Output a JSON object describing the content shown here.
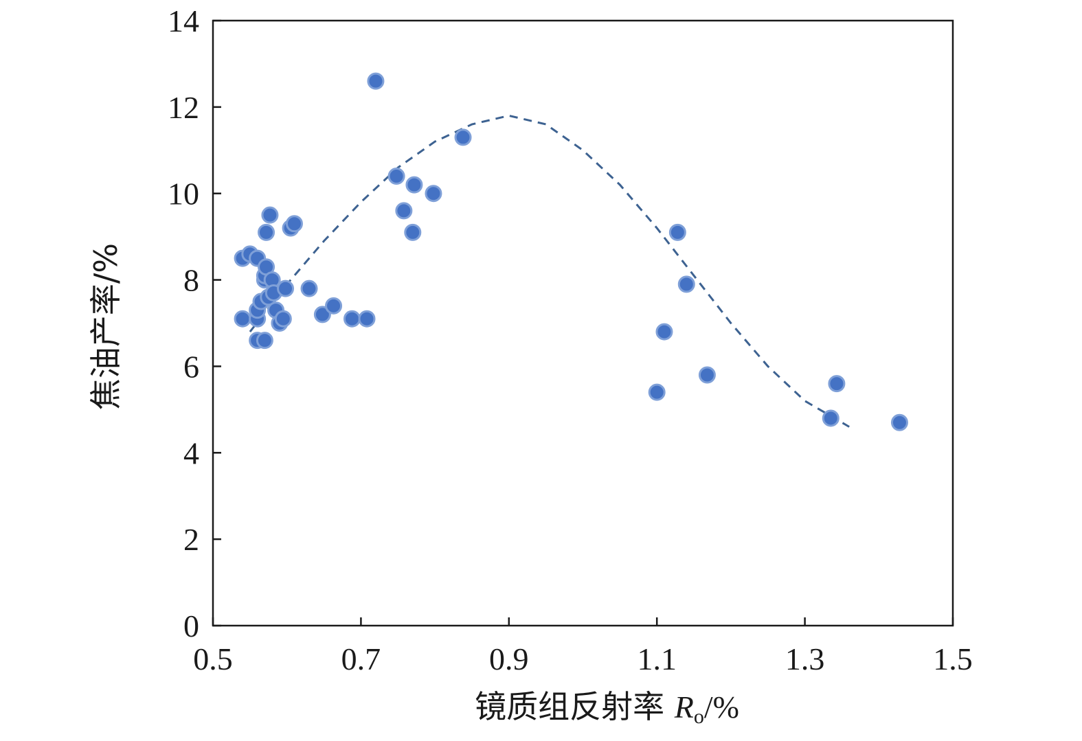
{
  "chart_data": {
    "type": "scatter",
    "title": "",
    "xlabel": {
      "main": "镜质组反射率 ",
      "symbol": "R",
      "subscript": "o",
      "unit": "/%"
    },
    "ylabel": "焦油产率/%",
    "xlim": [
      0.5,
      1.5
    ],
    "ylim": [
      0,
      14
    ],
    "xticks": [
      "0.5",
      "0.7",
      "0.9",
      "1.1",
      "1.3",
      "1.5"
    ],
    "yticks": [
      "0",
      "2",
      "4",
      "6",
      "8",
      "10",
      "12",
      "14"
    ],
    "grid": false,
    "legend": "none",
    "colors": {
      "points": "#4472c4",
      "point_edge": "#7fa0d8",
      "trend": "#3d6291",
      "axis": "#1a1a1a"
    },
    "series": [
      {
        "points": [
          [
            0.54,
            8.5
          ],
          [
            0.55,
            8.6
          ],
          [
            0.56,
            8.5
          ],
          [
            0.54,
            7.1
          ],
          [
            0.56,
            7.1
          ],
          [
            0.56,
            7.3
          ],
          [
            0.565,
            7.5
          ],
          [
            0.57,
            8.0
          ],
          [
            0.57,
            8.1
          ],
          [
            0.572,
            8.3
          ],
          [
            0.575,
            7.6
          ],
          [
            0.58,
            8.0
          ],
          [
            0.582,
            7.7
          ],
          [
            0.585,
            7.3
          ],
          [
            0.59,
            7.0
          ],
          [
            0.595,
            7.1
          ],
          [
            0.598,
            7.8
          ],
          [
            0.56,
            6.6
          ],
          [
            0.57,
            6.6
          ],
          [
            0.572,
            9.1
          ],
          [
            0.577,
            9.5
          ],
          [
            0.605,
            9.2
          ],
          [
            0.61,
            9.3
          ],
          [
            0.63,
            7.8
          ],
          [
            0.648,
            7.2
          ],
          [
            0.663,
            7.4
          ],
          [
            0.688,
            7.1
          ],
          [
            0.708,
            7.1
          ],
          [
            0.72,
            12.6
          ],
          [
            0.748,
            10.4
          ],
          [
            0.758,
            9.6
          ],
          [
            0.77,
            9.1
          ],
          [
            0.772,
            10.2
          ],
          [
            0.798,
            10.0
          ],
          [
            0.838,
            11.3
          ],
          [
            1.1,
            5.4
          ],
          [
            1.11,
            6.8
          ],
          [
            1.128,
            9.1
          ],
          [
            1.14,
            7.9
          ],
          [
            1.168,
            5.8
          ],
          [
            1.335,
            4.8
          ],
          [
            1.343,
            5.6
          ],
          [
            1.428,
            4.7
          ]
        ]
      }
    ],
    "trendline": {
      "style": "dashed",
      "points": [
        [
          0.55,
          6.8
        ],
        [
          0.6,
          7.9
        ],
        [
          0.65,
          8.9
        ],
        [
          0.7,
          9.8
        ],
        [
          0.75,
          10.6
        ],
        [
          0.8,
          11.2
        ],
        [
          0.85,
          11.6
        ],
        [
          0.9,
          11.8
        ],
        [
          0.95,
          11.6
        ],
        [
          1.0,
          11.0
        ],
        [
          1.05,
          10.2
        ],
        [
          1.1,
          9.2
        ],
        [
          1.15,
          8.1
        ],
        [
          1.2,
          7.0
        ],
        [
          1.25,
          6.0
        ],
        [
          1.3,
          5.2
        ],
        [
          1.36,
          4.6
        ]
      ]
    }
  }
}
